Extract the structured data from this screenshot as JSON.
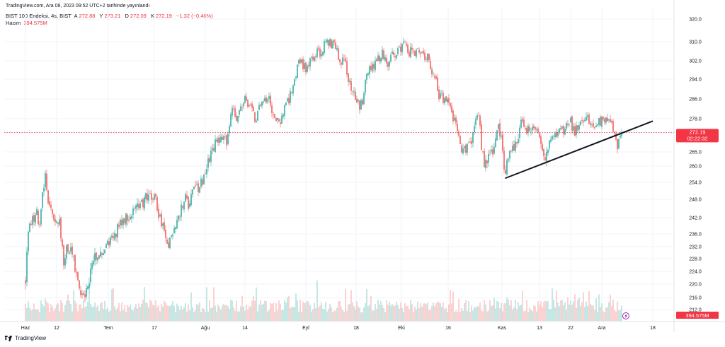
{
  "header": {
    "published": "TradingView.com, Ara 08, 2023 09:52 UTC+2 tarihinde yayınlandı"
  },
  "legend": {
    "symbol": "BIST 100 Endeksi, 4s, BIST",
    "o_label": "A",
    "o": "272.88",
    "h_label": "Y",
    "h": "273.21",
    "l_label": "D",
    "l": "272.09",
    "c_label": "K",
    "c": "272.19",
    "change": "−1.32 (−0.48%)",
    "volume_label": "Hacim",
    "volume": "394.575M"
  },
  "price_tag": {
    "price": "272.19",
    "countdown": "02:22:32"
  },
  "volume_tag": "394.575M",
  "footer": {
    "brand": "TradingView"
  },
  "colors": {
    "up": "#26a69a",
    "down": "#ef5350",
    "up_vol": "#9fd8d2",
    "down_vol": "#f7b6b5",
    "grid": "#f0f3fa",
    "line": "#131722",
    "last": "#f23645"
  },
  "icons": {
    "lightning": "lightning-icon",
    "logo": "tradingview-logo-icon"
  },
  "chart_data": {
    "type": "candlestick",
    "title": "BIST 100 Endeksi, 4s, BIST",
    "y_ticks": [
      212,
      216,
      220,
      224,
      228,
      232,
      236,
      242,
      248,
      254,
      260,
      265,
      272,
      278,
      286,
      294,
      302,
      310,
      320
    ],
    "x_ticks": [
      "Haz",
      "12",
      "Tem",
      "17",
      "Ağu",
      "14",
      "Eyl",
      "18",
      "Eki",
      "16",
      "Kas",
      "13",
      "22",
      "Ara",
      "18"
    ],
    "last_price": 272.19,
    "price_path": [
      {
        "date": "2023-06-01",
        "close": 221
      },
      {
        "date": "2023-06-02",
        "close": 238
      },
      {
        "date": "2023-06-05",
        "close": 243
      },
      {
        "date": "2023-06-06",
        "close": 238
      },
      {
        "date": "2023-06-07",
        "close": 250
      },
      {
        "date": "2023-06-08",
        "close": 256
      },
      {
        "date": "2023-06-09",
        "close": 247
      },
      {
        "date": "2023-06-12",
        "close": 239
      },
      {
        "date": "2023-06-13",
        "close": 243
      },
      {
        "date": "2023-06-14",
        "close": 233
      },
      {
        "date": "2023-06-15",
        "close": 226
      },
      {
        "date": "2023-06-16",
        "close": 232
      },
      {
        "date": "2023-06-19",
        "close": 228
      },
      {
        "date": "2023-06-20",
        "close": 222
      },
      {
        "date": "2023-06-21",
        "close": 219
      },
      {
        "date": "2023-06-23",
        "close": 216
      },
      {
        "date": "2023-06-26",
        "close": 224
      },
      {
        "date": "2023-06-27",
        "close": 229
      },
      {
        "date": "2023-07-03",
        "close": 232
      },
      {
        "date": "2023-07-05",
        "close": 236
      },
      {
        "date": "2023-07-07",
        "close": 241
      },
      {
        "date": "2023-07-11",
        "close": 244
      },
      {
        "date": "2023-07-14",
        "close": 248
      },
      {
        "date": "2023-07-17",
        "close": 250
      },
      {
        "date": "2023-07-18",
        "close": 244
      },
      {
        "date": "2023-07-20",
        "close": 236
      },
      {
        "date": "2023-07-21",
        "close": 232
      },
      {
        "date": "2023-07-24",
        "close": 242
      },
      {
        "date": "2023-07-26",
        "close": 250
      },
      {
        "date": "2023-07-27",
        "close": 245
      },
      {
        "date": "2023-07-28",
        "close": 250
      },
      {
        "date": "2023-07-31",
        "close": 254
      },
      {
        "date": "2023-08-02",
        "close": 262
      },
      {
        "date": "2023-08-04",
        "close": 268
      },
      {
        "date": "2023-08-07",
        "close": 272
      },
      {
        "date": "2023-08-08",
        "close": 268
      },
      {
        "date": "2023-08-09",
        "close": 276
      },
      {
        "date": "2023-08-10",
        "close": 282
      },
      {
        "date": "2023-08-11",
        "close": 277
      },
      {
        "date": "2023-08-14",
        "close": 286
      },
      {
        "date": "2023-08-15",
        "close": 282
      },
      {
        "date": "2023-08-16",
        "close": 285
      },
      {
        "date": "2023-08-17",
        "close": 276
      },
      {
        "date": "2023-08-18",
        "close": 285
      },
      {
        "date": "2023-08-21",
        "close": 287
      },
      {
        "date": "2023-08-22",
        "close": 282
      },
      {
        "date": "2023-08-23",
        "close": 279
      },
      {
        "date": "2023-08-24",
        "close": 276
      },
      {
        "date": "2023-08-25",
        "close": 280
      },
      {
        "date": "2023-08-28",
        "close": 289
      },
      {
        "date": "2023-08-29",
        "close": 296
      },
      {
        "date": "2023-08-30",
        "close": 302
      },
      {
        "date": "2023-09-01",
        "close": 299
      },
      {
        "date": "2023-09-04",
        "close": 304
      },
      {
        "date": "2023-09-05",
        "close": 307
      },
      {
        "date": "2023-09-06",
        "close": 304
      },
      {
        "date": "2023-09-07",
        "close": 309
      },
      {
        "date": "2023-09-08",
        "close": 310
      },
      {
        "date": "2023-09-11",
        "close": 308
      },
      {
        "date": "2023-09-12",
        "close": 304
      },
      {
        "date": "2023-09-13",
        "close": 300
      },
      {
        "date": "2023-09-14",
        "close": 304
      },
      {
        "date": "2023-09-15",
        "close": 294
      },
      {
        "date": "2023-09-18",
        "close": 287
      },
      {
        "date": "2023-09-19",
        "close": 283
      },
      {
        "date": "2023-09-20",
        "close": 286
      },
      {
        "date": "2023-09-21",
        "close": 293
      },
      {
        "date": "2023-09-22",
        "close": 298
      },
      {
        "date": "2023-09-25",
        "close": 303
      },
      {
        "date": "2023-09-26",
        "close": 306
      },
      {
        "date": "2023-09-27",
        "close": 303
      },
      {
        "date": "2023-09-28",
        "close": 300
      },
      {
        "date": "2023-09-29",
        "close": 304
      },
      {
        "date": "2023-10-02",
        "close": 307
      },
      {
        "date": "2023-10-03",
        "close": 310
      },
      {
        "date": "2023-10-04",
        "close": 305
      },
      {
        "date": "2023-10-05",
        "close": 307
      },
      {
        "date": "2023-10-06",
        "close": 306
      },
      {
        "date": "2023-10-09",
        "close": 303
      },
      {
        "date": "2023-10-10",
        "close": 305
      },
      {
        "date": "2023-10-11",
        "close": 298
      },
      {
        "date": "2023-10-12",
        "close": 296
      },
      {
        "date": "2023-10-13",
        "close": 288
      },
      {
        "date": "2023-10-16",
        "close": 284
      },
      {
        "date": "2023-10-17",
        "close": 280
      },
      {
        "date": "2023-10-18",
        "close": 276
      },
      {
        "date": "2023-10-19",
        "close": 270
      },
      {
        "date": "2023-10-20",
        "close": 264
      },
      {
        "date": "2023-10-23",
        "close": 270
      },
      {
        "date": "2023-10-24",
        "close": 278
      },
      {
        "date": "2023-10-25",
        "close": 282
      },
      {
        "date": "2023-10-26",
        "close": 266
      },
      {
        "date": "2023-10-27",
        "close": 260
      },
      {
        "date": "2023-10-30",
        "close": 268
      },
      {
        "date": "2023-10-31",
        "close": 274
      },
      {
        "date": "2023-11-01",
        "close": 268
      },
      {
        "date": "2023-11-02",
        "close": 256
      },
      {
        "date": "2023-11-03",
        "close": 264
      },
      {
        "date": "2023-11-06",
        "close": 268
      },
      {
        "date": "2023-11-07",
        "close": 276
      },
      {
        "date": "2023-11-08",
        "close": 275
      },
      {
        "date": "2023-11-09",
        "close": 273
      },
      {
        "date": "2023-11-10",
        "close": 275
      },
      {
        "date": "2023-11-13",
        "close": 271
      },
      {
        "date": "2023-11-14",
        "close": 262
      },
      {
        "date": "2023-11-15",
        "close": 264
      },
      {
        "date": "2023-11-16",
        "close": 268
      },
      {
        "date": "2023-11-17",
        "close": 271
      },
      {
        "date": "2023-11-20",
        "close": 273
      },
      {
        "date": "2023-11-21",
        "close": 276
      },
      {
        "date": "2023-11-22",
        "close": 277
      },
      {
        "date": "2023-11-23",
        "close": 272
      },
      {
        "date": "2023-11-24",
        "close": 274
      },
      {
        "date": "2023-11-27",
        "close": 278
      },
      {
        "date": "2023-11-28",
        "close": 276
      },
      {
        "date": "2023-11-29",
        "close": 274
      },
      {
        "date": "2023-11-30",
        "close": 276
      },
      {
        "date": "2023-12-01",
        "close": 278
      },
      {
        "date": "2023-12-04",
        "close": 276
      },
      {
        "date": "2023-12-05",
        "close": 272
      },
      {
        "date": "2023-12-06",
        "close": 267
      },
      {
        "date": "2023-12-07",
        "close": 271
      },
      {
        "date": "2023-12-08",
        "close": 272.19
      }
    ],
    "trendline": [
      {
        "date": "2023-11-02",
        "price": 255.5
      },
      {
        "date": "2023-12-18",
        "price": 277
      }
    ]
  }
}
